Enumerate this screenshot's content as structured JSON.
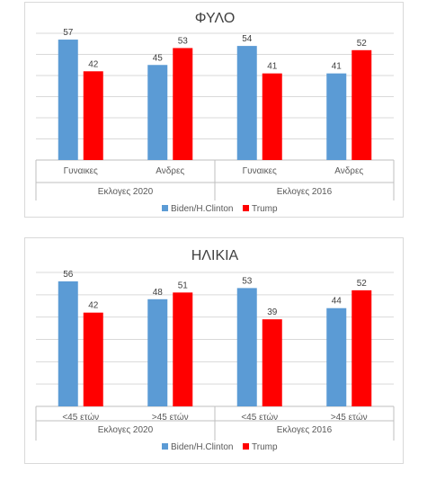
{
  "chart_data": [
    {
      "type": "bar",
      "title": "ΦΥΛΟ",
      "categories": [
        "Γυναικες",
        "Ανδρες",
        "Γυναικες",
        "Ανδρες"
      ],
      "groups": [
        {
          "label": "Εκλογες 2020",
          "categories": [
            "Γυναικες",
            "Ανδρες"
          ]
        },
        {
          "label": "Εκλογες 2016",
          "categories": [
            "Γυναικες",
            "Ανδρες"
          ]
        }
      ],
      "series": [
        {
          "name": "Biden/H.Clinton",
          "color": "#5b9bd5",
          "values": [
            57,
            45,
            54,
            41
          ]
        },
        {
          "name": "Trump",
          "color": "#ff0000",
          "values": [
            42,
            53,
            41,
            52
          ]
        }
      ],
      "ylim": [
        0,
        60
      ],
      "grid": true,
      "legend_position": "bottom"
    },
    {
      "type": "bar",
      "title": "ΗΛΙΚΙΑ",
      "categories": [
        "<45 ετών",
        ">45 ετών",
        "<45 ετών",
        ">45 ετών"
      ],
      "groups": [
        {
          "label": "Εκλογες 2020",
          "categories": [
            "<45 ετών",
            ">45 ετών"
          ]
        },
        {
          "label": "Εκλογες 2016",
          "categories": [
            "<45 ετών",
            ">45 ετών"
          ]
        }
      ],
      "series": [
        {
          "name": "Biden/H.Clinton",
          "color": "#5b9bd5",
          "values": [
            56,
            48,
            53,
            44
          ]
        },
        {
          "name": "Trump",
          "color": "#ff0000",
          "values": [
            42,
            51,
            39,
            52
          ]
        }
      ],
      "ylim": [
        0,
        60
      ],
      "grid": true,
      "legend_position": "bottom"
    }
  ],
  "colors": {
    "gridline": "#d9d9d9",
    "axis": "#bfbfbf"
  }
}
